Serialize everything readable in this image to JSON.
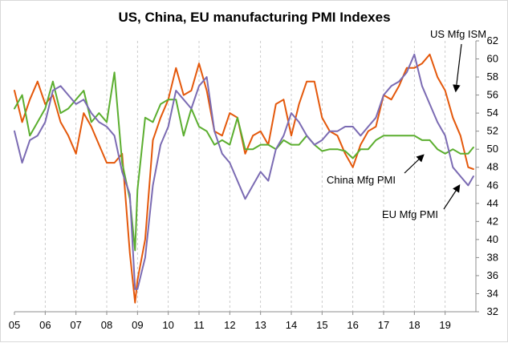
{
  "chart_data": {
    "type": "line",
    "title": "US, China, EU manufacturing PMI Indexes",
    "xlabel": "",
    "ylabel": "",
    "x_tick_labels": [
      "05",
      "06",
      "07",
      "08",
      "09",
      "10",
      "11",
      "12",
      "13",
      "14",
      "15",
      "16",
      "17",
      "18",
      "19"
    ],
    "x_range": [
      2005.0,
      2020.0
    ],
    "ylim": [
      32,
      62
    ],
    "y_ticks": [
      32,
      34,
      36,
      38,
      40,
      42,
      44,
      46,
      48,
      50,
      52,
      54,
      56,
      58,
      60,
      62
    ],
    "y_axis_side": "right",
    "grid": {
      "vertical_dashed": true,
      "horizontal": false
    },
    "legend": "none (series labeled by arrows)",
    "series": [
      {
        "name": "US Mfg ISM",
        "color": "#E4580B",
        "x": [
          2005.0,
          2005.25,
          2005.5,
          2005.75,
          2006.0,
          2006.25,
          2006.5,
          2006.75,
          2007.0,
          2007.25,
          2007.5,
          2007.75,
          2008.0,
          2008.25,
          2008.5,
          2008.75,
          2008.92,
          2009.0,
          2009.25,
          2009.5,
          2009.75,
          2010.0,
          2010.25,
          2010.5,
          2010.75,
          2011.0,
          2011.25,
          2011.5,
          2011.75,
          2012.0,
          2012.25,
          2012.5,
          2012.75,
          2013.0,
          2013.25,
          2013.5,
          2013.75,
          2014.0,
          2014.25,
          2014.5,
          2014.75,
          2015.0,
          2015.25,
          2015.5,
          2015.75,
          2016.0,
          2016.25,
          2016.5,
          2016.75,
          2017.0,
          2017.25,
          2017.5,
          2017.75,
          2018.0,
          2018.25,
          2018.5,
          2018.75,
          2019.0,
          2019.25,
          2019.5,
          2019.75,
          2019.92
        ],
        "y": [
          56.5,
          53.0,
          55.5,
          57.5,
          55.0,
          56.0,
          53.0,
          51.5,
          49.5,
          54.0,
          52.5,
          50.5,
          48.5,
          48.5,
          49.5,
          38.5,
          33.0,
          35.5,
          40.0,
          51.0,
          53.5,
          55.5,
          59.0,
          56.0,
          56.5,
          59.5,
          56.5,
          52.0,
          51.5,
          54.0,
          53.5,
          49.5,
          51.5,
          52.0,
          50.5,
          55.0,
          55.5,
          51.5,
          55.0,
          57.5,
          57.5,
          53.5,
          52.0,
          51.5,
          49.5,
          48.0,
          50.5,
          52.0,
          52.5,
          56.0,
          55.5,
          57.0,
          59.0,
          59.0,
          59.5,
          60.5,
          58.0,
          56.5,
          53.5,
          51.5,
          48.0,
          47.8
        ]
      },
      {
        "name": "China Mfg PMI",
        "color": "#5BAE2F",
        "x": [
          2005.0,
          2005.25,
          2005.5,
          2005.75,
          2006.0,
          2006.25,
          2006.5,
          2006.75,
          2007.0,
          2007.25,
          2007.5,
          2007.75,
          2008.0,
          2008.25,
          2008.5,
          2008.75,
          2008.92,
          2009.0,
          2009.25,
          2009.5,
          2009.75,
          2010.0,
          2010.25,
          2010.5,
          2010.75,
          2011.0,
          2011.25,
          2011.5,
          2011.75,
          2012.0,
          2012.25,
          2012.5,
          2012.75,
          2013.0,
          2013.25,
          2013.5,
          2013.75,
          2014.0,
          2014.25,
          2014.5,
          2014.75,
          2015.0,
          2015.25,
          2015.5,
          2015.75,
          2016.0,
          2016.25,
          2016.5,
          2016.75,
          2017.0,
          2017.25,
          2017.5,
          2017.75,
          2018.0,
          2018.25,
          2018.5,
          2018.75,
          2019.0,
          2019.25,
          2019.5,
          2019.75,
          2019.92
        ],
        "y": [
          54.5,
          56.0,
          51.5,
          53.0,
          54.5,
          57.5,
          54.0,
          54.5,
          55.5,
          56.5,
          53.0,
          54.0,
          53.0,
          58.5,
          48.5,
          44.5,
          38.8,
          45.5,
          53.5,
          53.0,
          55.0,
          55.5,
          55.5,
          51.5,
          54.5,
          52.5,
          52.0,
          50.5,
          51.0,
          50.5,
          53.5,
          50.0,
          50.0,
          50.5,
          50.5,
          50.0,
          51.0,
          50.5,
          50.5,
          51.5,
          50.5,
          49.8,
          50.0,
          50.0,
          49.8,
          49.0,
          50.0,
          50.0,
          51.0,
          51.5,
          51.5,
          51.5,
          51.5,
          51.5,
          51.0,
          51.0,
          50.0,
          49.5,
          50.0,
          49.5,
          49.5,
          50.2
        ]
      },
      {
        "name": "EU Mfg PMI",
        "color": "#7B6BB3",
        "x": [
          2005.0,
          2005.25,
          2005.5,
          2005.75,
          2006.0,
          2006.25,
          2006.5,
          2006.75,
          2007.0,
          2007.25,
          2007.5,
          2007.75,
          2008.0,
          2008.25,
          2008.5,
          2008.75,
          2008.92,
          2009.0,
          2009.25,
          2009.5,
          2009.75,
          2010.0,
          2010.25,
          2010.5,
          2010.75,
          2011.0,
          2011.25,
          2011.5,
          2011.75,
          2012.0,
          2012.25,
          2012.5,
          2012.75,
          2013.0,
          2013.25,
          2013.5,
          2013.75,
          2014.0,
          2014.25,
          2014.5,
          2014.75,
          2015.0,
          2015.25,
          2015.5,
          2015.75,
          2016.0,
          2016.25,
          2016.5,
          2016.75,
          2017.0,
          2017.25,
          2017.5,
          2017.75,
          2018.0,
          2018.25,
          2018.5,
          2018.75,
          2019.0,
          2019.25,
          2019.5,
          2019.75,
          2019.92
        ],
        "y": [
          52.0,
          48.5,
          51.0,
          51.5,
          53.0,
          56.5,
          57.0,
          56.0,
          55.0,
          55.5,
          54.0,
          53.0,
          52.5,
          51.5,
          47.5,
          45.0,
          34.5,
          34.5,
          38.0,
          46.0,
          50.5,
          52.5,
          56.5,
          55.5,
          54.5,
          57.0,
          58.0,
          52.0,
          49.5,
          48.5,
          46.5,
          44.5,
          46.0,
          47.5,
          46.5,
          50.0,
          51.5,
          54.0,
          53.0,
          51.5,
          50.5,
          51.0,
          52.0,
          52.0,
          52.5,
          52.5,
          51.5,
          52.5,
          53.5,
          56.0,
          57.0,
          57.5,
          58.5,
          60.5,
          57.0,
          55.0,
          53.0,
          51.5,
          48.0,
          47.0,
          46.0,
          47.0
        ]
      }
    ],
    "annotations": [
      {
        "label": "US Mfg ISM",
        "points_to": "US Mfg ISM"
      },
      {
        "label": "China Mfg PMI",
        "points_to": "China Mfg PMI"
      },
      {
        "label": "EU Mfg PMI",
        "points_to": "EU Mfg PMI"
      }
    ]
  }
}
